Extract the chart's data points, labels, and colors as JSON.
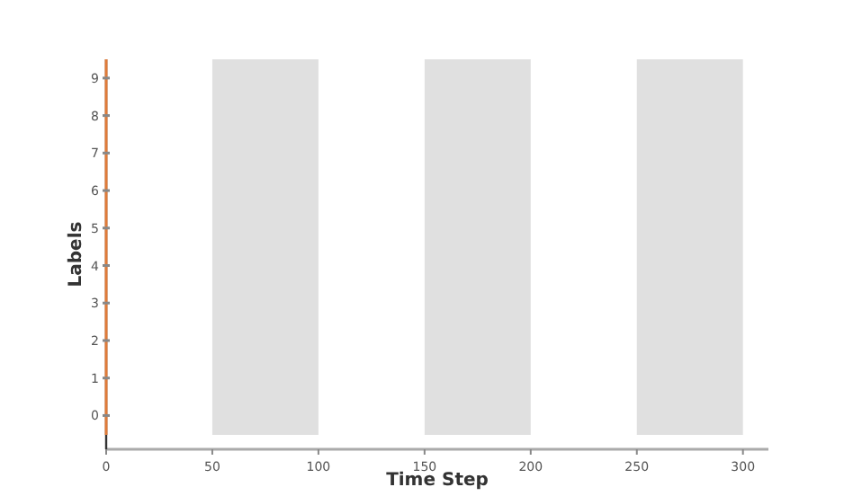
{
  "chart_data": {
    "type": "line",
    "xlabel": "Time Step",
    "ylabel": "Labels",
    "xlim": [
      0,
      312
    ],
    "xticks": [
      0,
      50,
      100,
      150,
      200,
      250,
      300
    ],
    "ylim": [
      -0.9,
      9.5
    ],
    "yticks": [
      0,
      1,
      2,
      3,
      4,
      5,
      6,
      7,
      8,
      9
    ],
    "grid": false,
    "ref_lines": [
      {
        "axis": "x",
        "value": 0,
        "color": "#e07b39"
      }
    ],
    "bands": [
      {
        "axis": "x",
        "from": 50,
        "to": 100,
        "color": "#dddddd"
      },
      {
        "axis": "x",
        "from": 150,
        "to": 200,
        "color": "#dddddd"
      },
      {
        "axis": "x",
        "from": 250,
        "to": 300,
        "color": "#dddddd"
      }
    ]
  }
}
